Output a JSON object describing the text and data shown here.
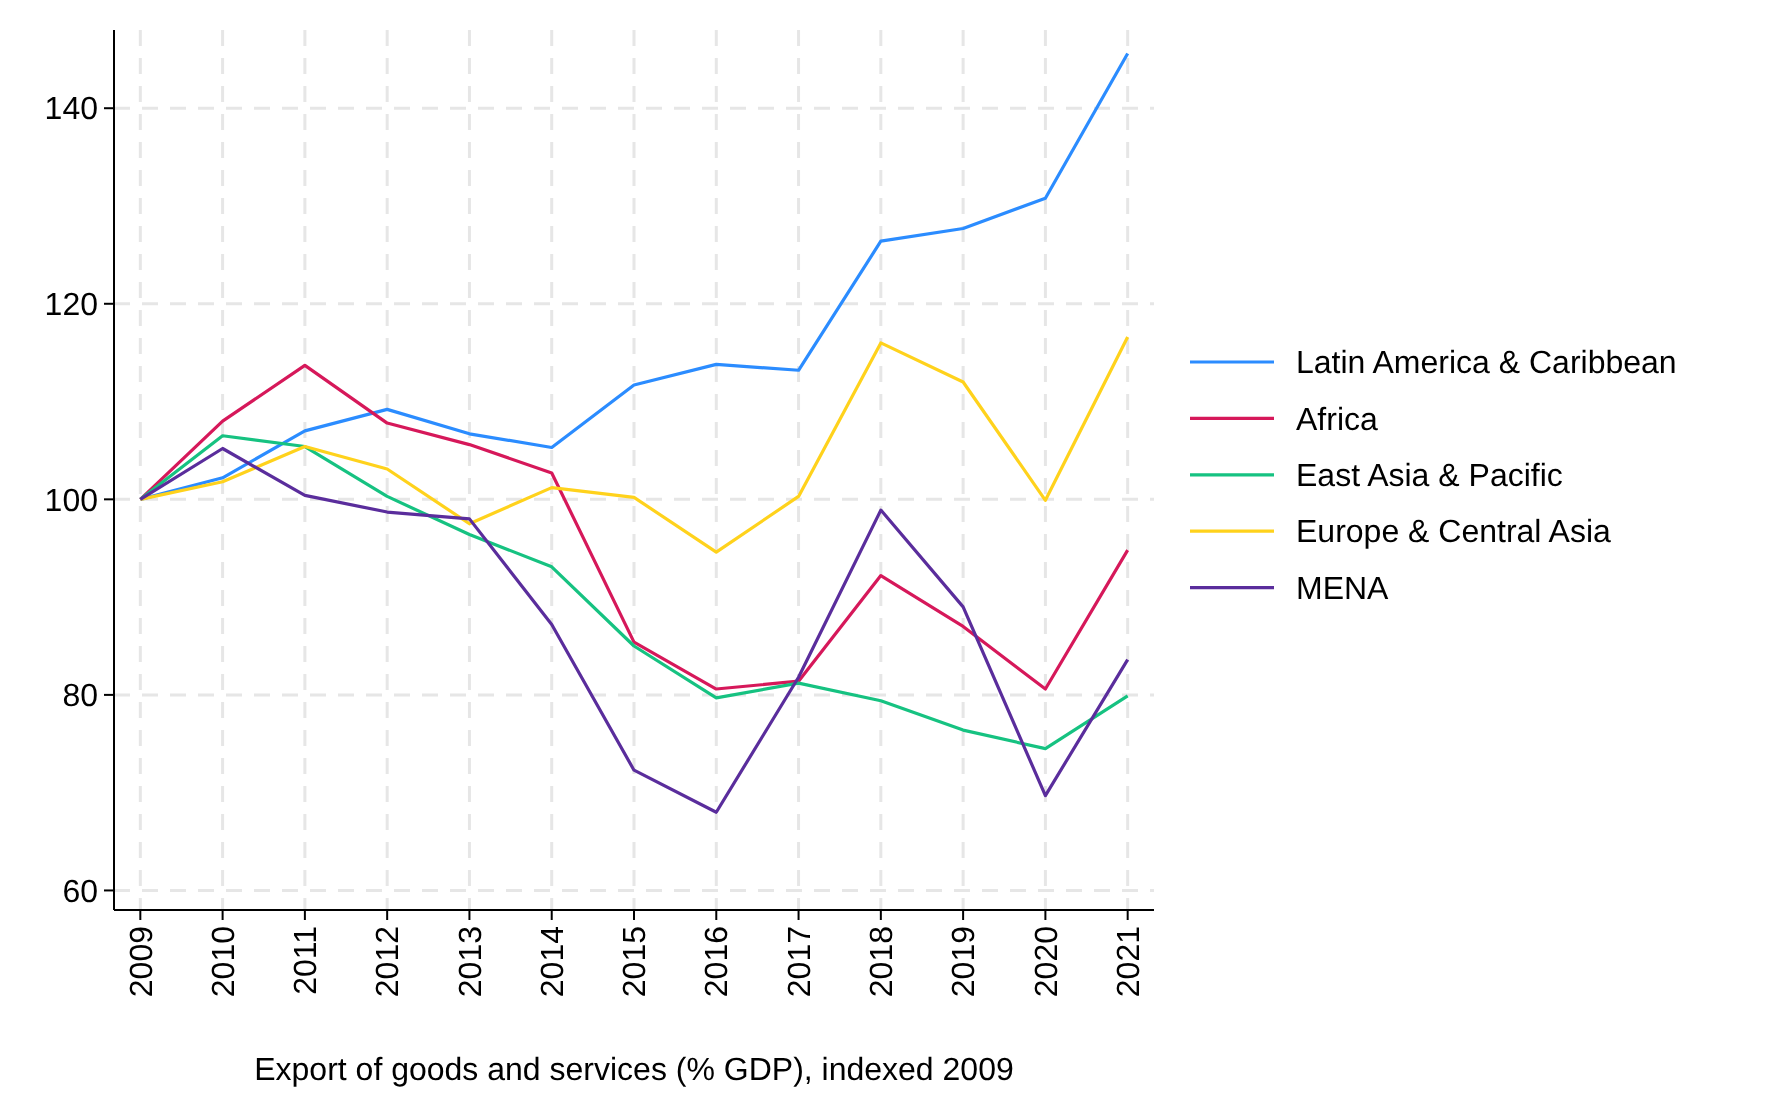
{
  "chart_data": {
    "type": "line",
    "xlabel": "Export of goods and services (% GDP), indexed 2009",
    "x": [
      2009,
      2010,
      2011,
      2012,
      2013,
      2014,
      2015,
      2016,
      2017,
      2018,
      2019,
      2020,
      2021
    ],
    "xlim": [
      2008.68,
      2021.32
    ],
    "xticks": [
      2009,
      2010,
      2011,
      2012,
      2013,
      2014,
      2015,
      2016,
      2017,
      2018,
      2019,
      2020,
      2021
    ],
    "ylim": [
      58,
      148
    ],
    "yticks": [
      60,
      80,
      100,
      120,
      140
    ],
    "grid": true,
    "legend": "right",
    "marker": "none",
    "line_style": "solid",
    "series": [
      {
        "name": "Latin America & Caribbean",
        "color": "#2b8cff",
        "values": [
          100,
          102.2,
          107,
          109.2,
          106.7,
          105.3,
          111.7,
          113.8,
          113.2,
          126.4,
          127.7,
          130.8,
          145.6
        ]
      },
      {
        "name": "Africa",
        "color": "#d6185a",
        "values": [
          100,
          108,
          113.7,
          107.8,
          105.6,
          102.7,
          85.4,
          80.6,
          81.4,
          92.2,
          87,
          80.6,
          94.8
        ]
      },
      {
        "name": "East Asia & Pacific",
        "color": "#16c281",
        "values": [
          100,
          106.5,
          105.4,
          100.3,
          96.4,
          93.1,
          85,
          79.7,
          81.2,
          79.4,
          76.4,
          74.5,
          79.9
        ]
      },
      {
        "name": "Europe & Central Asia",
        "color": "#ffd21c",
        "values": [
          100,
          101.8,
          105.4,
          103.1,
          97.5,
          101.2,
          100.2,
          94.6,
          100.3,
          116,
          112,
          99.9,
          116.6
        ]
      },
      {
        "name": "MENA",
        "color": "#5a2d9c",
        "values": [
          100,
          105.2,
          100.4,
          98.7,
          98,
          87.2,
          72.3,
          68,
          81.8,
          98.9,
          89,
          69.7,
          83.6
        ]
      }
    ]
  }
}
